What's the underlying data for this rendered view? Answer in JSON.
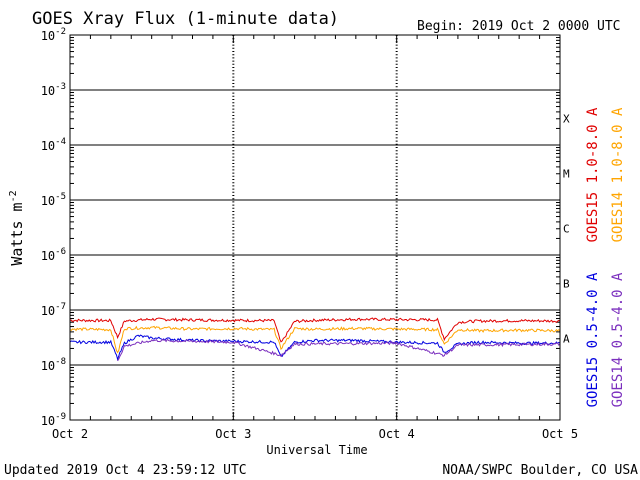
{
  "header": {
    "title": "GOES Xray Flux (1-minute data)",
    "begin": "Begin:  2019 Oct 2 0000 UTC"
  },
  "footer": {
    "updated": "Updated 2019 Oct  4 23:59:12 UTC",
    "source": "NOAA/SWPC Boulder, CO USA"
  },
  "chart_data": {
    "type": "line",
    "xlabel": "Universal Time",
    "ylabel": "Watts m",
    "ylabel_sup": "-2",
    "yscale": "log",
    "ylim": [
      1e-09,
      0.01
    ],
    "yticks": [
      {
        "base": "10",
        "exp": "-2"
      },
      {
        "base": "10",
        "exp": "-3"
      },
      {
        "base": "10",
        "exp": "-4"
      },
      {
        "base": "10",
        "exp": "-5"
      },
      {
        "base": "10",
        "exp": "-6"
      },
      {
        "base": "10",
        "exp": "-7"
      },
      {
        "base": "10",
        "exp": "-8"
      },
      {
        "base": "10",
        "exp": "-9"
      }
    ],
    "xticks": [
      "Oct 2",
      "Oct 3",
      "Oct 4",
      "Oct 5"
    ],
    "xlim": [
      "2019-10-02",
      "2019-10-05"
    ],
    "flare_classes": [
      "X",
      "M",
      "C",
      "B",
      "A"
    ],
    "grid": true,
    "series": [
      {
        "name": "GOES15 1.0-8.0 A",
        "color": "#e00000",
        "points": [
          [
            "2019-10-02 00:00",
            6.5e-08
          ],
          [
            "2019-10-02 06:00",
            6.4e-08
          ],
          [
            "2019-10-02 07:00",
            3.2e-08
          ],
          [
            "2019-10-02 08:00",
            6.3e-08
          ],
          [
            "2019-10-02 12:00",
            6.8e-08
          ],
          [
            "2019-10-02 18:00",
            6.6e-08
          ],
          [
            "2019-10-03 00:00",
            6.5e-08
          ],
          [
            "2019-10-03 06:00",
            6.4e-08
          ],
          [
            "2019-10-03 07:00",
            2.5e-08
          ],
          [
            "2019-10-03 09:00",
            6.2e-08
          ],
          [
            "2019-10-03 12:00",
            6.5e-08
          ],
          [
            "2019-10-03 18:00",
            6.8e-08
          ],
          [
            "2019-10-04 00:00",
            6.7e-08
          ],
          [
            "2019-10-04 06:00",
            6.6e-08
          ],
          [
            "2019-10-04 07:00",
            3e-08
          ],
          [
            "2019-10-04 09:00",
            6e-08
          ],
          [
            "2019-10-04 12:00",
            6.3e-08
          ],
          [
            "2019-10-04 18:00",
            6.4e-08
          ],
          [
            "2019-10-05 00:00",
            6.3e-08
          ]
        ]
      },
      {
        "name": "GOES14 1.0-8.0 A",
        "color": "#ffa500",
        "points": [
          [
            "2019-10-02 00:00",
            4.5e-08
          ],
          [
            "2019-10-02 06:00",
            4.4e-08
          ],
          [
            "2019-10-02 07:00",
            1.6e-08
          ],
          [
            "2019-10-02 08:00",
            4.6e-08
          ],
          [
            "2019-10-02 12:00",
            4.8e-08
          ],
          [
            "2019-10-02 18:00",
            4.5e-08
          ],
          [
            "2019-10-03 00:00",
            4.6e-08
          ],
          [
            "2019-10-03 06:00",
            4.4e-08
          ],
          [
            "2019-10-03 07:00",
            2e-08
          ],
          [
            "2019-10-03 09:00",
            4.6e-08
          ],
          [
            "2019-10-03 12:00",
            4.5e-08
          ],
          [
            "2019-10-03 18:00",
            4.6e-08
          ],
          [
            "2019-10-04 00:00",
            4.5e-08
          ],
          [
            "2019-10-04 06:00",
            4.4e-08
          ],
          [
            "2019-10-04 07:00",
            2.4e-08
          ],
          [
            "2019-10-04 09:00",
            4.4e-08
          ],
          [
            "2019-10-04 12:00",
            4.2e-08
          ],
          [
            "2019-10-04 18:00",
            4.3e-08
          ],
          [
            "2019-10-05 00:00",
            4.2e-08
          ]
        ]
      },
      {
        "name": "GOES15 0.5-4.0 A",
        "color": "#0000e0",
        "points": [
          [
            "2019-10-02 00:00",
            2.6e-08
          ],
          [
            "2019-10-02 06:00",
            2.6e-08
          ],
          [
            "2019-10-02 07:00",
            1.3e-08
          ],
          [
            "2019-10-02 08:00",
            2.5e-08
          ],
          [
            "2019-10-02 10:00",
            3.4e-08
          ],
          [
            "2019-10-02 12:00",
            3.1e-08
          ],
          [
            "2019-10-02 18:00",
            2.8e-08
          ],
          [
            "2019-10-03 00:00",
            2.7e-08
          ],
          [
            "2019-10-03 06:00",
            2.6e-08
          ],
          [
            "2019-10-03 07:00",
            1.4e-08
          ],
          [
            "2019-10-03 09:00",
            2.6e-08
          ],
          [
            "2019-10-03 12:00",
            2.8e-08
          ],
          [
            "2019-10-03 18:00",
            2.8e-08
          ],
          [
            "2019-10-04 00:00",
            2.6e-08
          ],
          [
            "2019-10-04 06:00",
            2.5e-08
          ],
          [
            "2019-10-04 07:00",
            1.7e-08
          ],
          [
            "2019-10-04 09:00",
            2.4e-08
          ],
          [
            "2019-10-04 12:00",
            2.6e-08
          ],
          [
            "2019-10-04 18:00",
            2.5e-08
          ],
          [
            "2019-10-05 00:00",
            2.5e-08
          ]
        ]
      },
      {
        "name": "GOES14 0.5-4.0 A",
        "color": "#7b2fbe",
        "points": [
          [
            "2019-10-02 07:00",
            1.2e-08
          ],
          [
            "2019-10-02 08:00",
            2.2e-08
          ],
          [
            "2019-10-02 12:00",
            2.8e-08
          ],
          [
            "2019-10-03 00:00",
            2.6e-08
          ],
          [
            "2019-10-03 07:00",
            1.5e-08
          ],
          [
            "2019-10-03 09:00",
            2.4e-08
          ],
          [
            "2019-10-04 00:00",
            2.5e-08
          ],
          [
            "2019-10-04 07:00",
            1.5e-08
          ],
          [
            "2019-10-04 09:00",
            2.3e-08
          ],
          [
            "2019-10-05 00:00",
            2.4e-08
          ]
        ]
      }
    ]
  }
}
